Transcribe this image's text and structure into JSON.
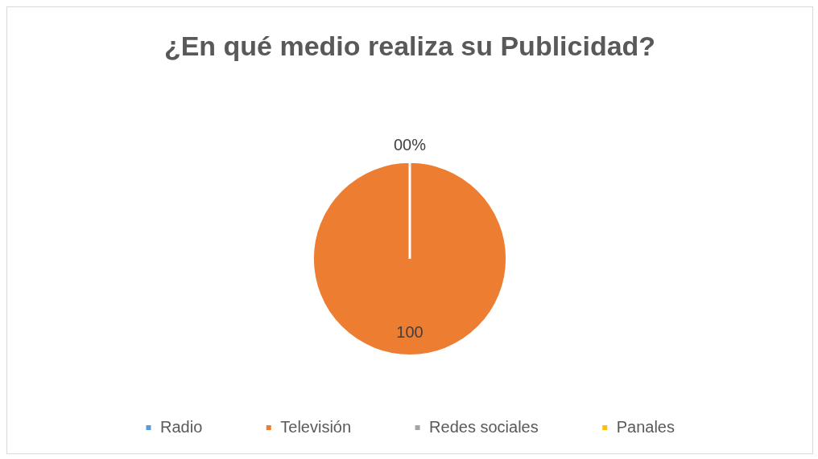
{
  "chart_data": {
    "type": "pie",
    "title": "¿En qué medio realiza su Publicidad?",
    "categories": [
      "Radio",
      "Televisión",
      "Redes sociales",
      "Panales"
    ],
    "values": [
      0,
      100,
      0,
      0
    ],
    "colors": [
      "#5b9bd5",
      "#ed7d31",
      "#a5a5a5",
      "#ffc000"
    ],
    "value_labels": [
      "0",
      "100",
      "0%",
      null
    ],
    "legend": "bottom"
  }
}
